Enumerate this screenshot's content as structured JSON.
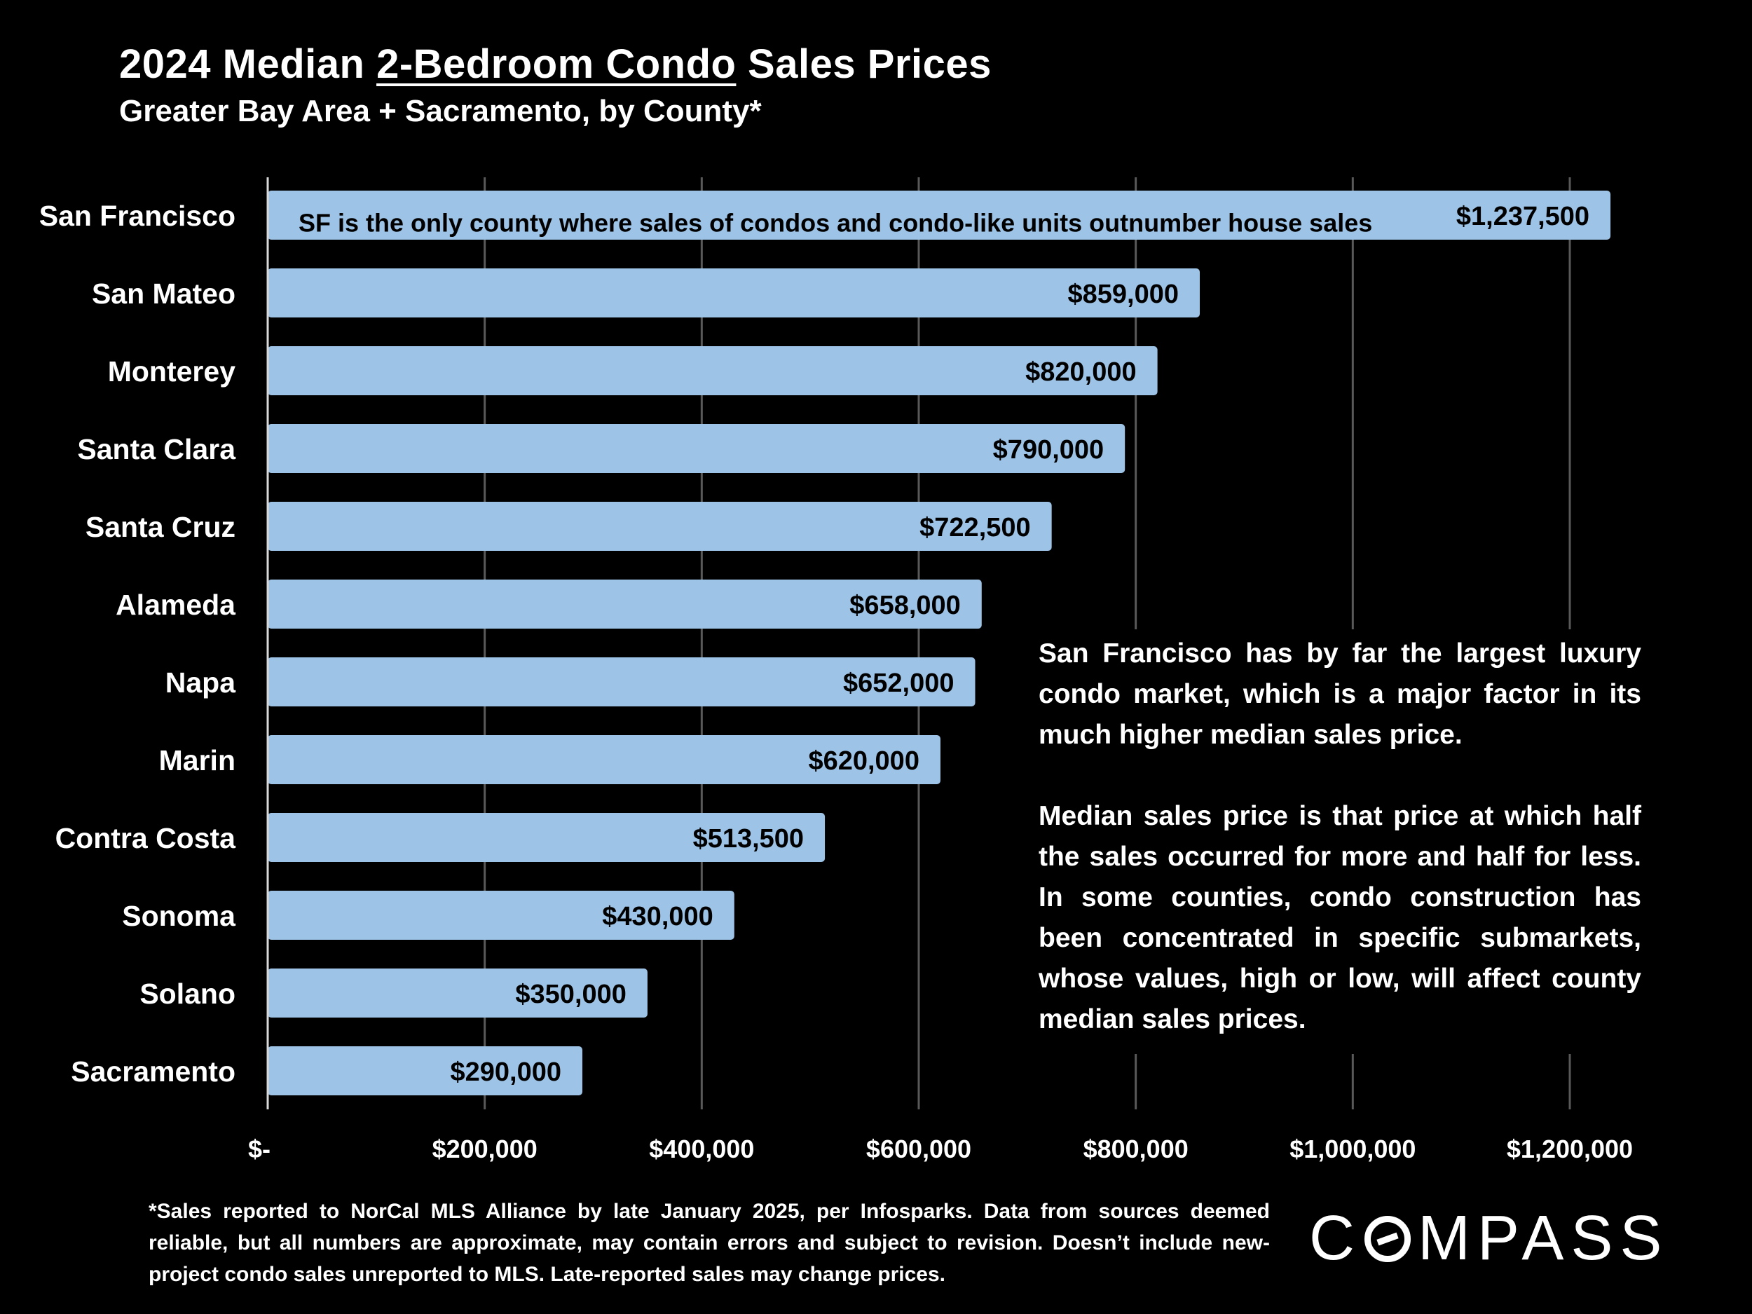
{
  "title": {
    "part1": "2024 Median ",
    "underlined": "2-Bedroom Condo",
    "part2": " Sales Prices"
  },
  "subtitle": "Greater Bay Area + Sacramento, by County*",
  "chart_data": {
    "type": "bar",
    "orientation": "horizontal",
    "categories": [
      "San Francisco",
      "San Mateo",
      "Monterey",
      "Santa Clara",
      "Santa Cruz",
      "Alameda",
      "Napa",
      "Marin",
      "Contra Costa",
      "Sonoma",
      "Solano",
      "Sacramento"
    ],
    "values": [
      1237500,
      859000,
      820000,
      790000,
      722500,
      658000,
      652000,
      620000,
      513500,
      430000,
      350000,
      290000
    ],
    "value_labels": [
      "$1,237,500",
      "$859,000",
      "$820,000",
      "$790,000",
      "$722,500",
      "$658,000",
      "$652,000",
      "$620,000",
      "$513,500",
      "$430,000",
      "$350,000",
      "$290,000"
    ],
    "xlim": [
      0,
      1200000
    ],
    "xticks": [
      0,
      200000,
      400000,
      600000,
      800000,
      1000000,
      1200000
    ],
    "xtick_labels": [
      "$-",
      "$200,000",
      "$400,000",
      "$600,000",
      "$800,000",
      "$1,000,000",
      "$1,200,000"
    ],
    "grid": true,
    "bar_color": "#9dc3e6",
    "label_color": "#000000",
    "gridline_color": "#595959",
    "bar_annotation": {
      "category": "San Francisco",
      "text": "SF is the only county where sales of condos and condo-like units outnumber house sales"
    }
  },
  "callout": {
    "paragraph1": "San Francisco has by far the largest luxury condo market, which is a major factor in its much higher median sales price.",
    "paragraph2": "Median sales price is that price at which half the sales occurred for more and half for less. In some counties, condo construction has been concentrated in specific submarkets, whose values, high or low, will affect county median sales prices."
  },
  "footnote": "*Sales reported to NorCal MLS Alliance by late January 2025, per Infosparks. Data from sources deemed reliable, but all numbers are approximate, may contain errors and subject to revision. Doesn’t include new-project condo sales unreported to MLS. Late-reported sales may change prices.",
  "logo": {
    "text": "COMPASS",
    "before_o": "C",
    "after_o": "MPASS"
  }
}
